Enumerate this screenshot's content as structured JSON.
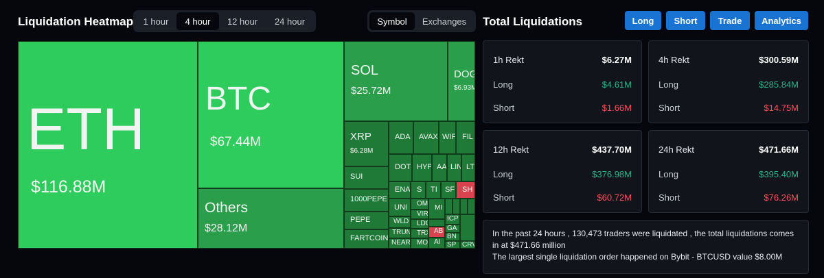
{
  "heatmap": {
    "title": "Liquidation Heatmap",
    "time_options": [
      "1 hour",
      "4 hour",
      "12 hour",
      "24 hour"
    ],
    "selected_time": "4 hour",
    "view_options": [
      "Symbol",
      "Exchanges"
    ],
    "selected_view": "Symbol",
    "tiles": {
      "eth": {
        "symbol": "ETH",
        "value": "$116.88M"
      },
      "btc": {
        "symbol": "BTC",
        "value": "$67.44M"
      },
      "others": {
        "symbol": "Others",
        "value": "$28.12M"
      },
      "sol": {
        "symbol": "SOL",
        "value": "$25.72M"
      },
      "doge": {
        "symbol": "DOG",
        "value": "$6.93M"
      },
      "xrp": {
        "symbol": "XRP",
        "value": "$6.28M"
      },
      "sui": {
        "symbol": "SUI"
      },
      "pepe1000": {
        "symbol": "1000PEPE"
      },
      "pepe": {
        "symbol": "PEPE"
      },
      "fartcoin": {
        "symbol": "FARTCOIN"
      },
      "ada": {
        "symbol": "ADA"
      },
      "avax": {
        "symbol": "AVAX"
      },
      "wif": {
        "symbol": "WIF"
      },
      "fil": {
        "symbol": "FIL"
      },
      "dot": {
        "symbol": "DOT"
      },
      "hyp": {
        "symbol": "HYP"
      },
      "aa": {
        "symbol": "AA"
      },
      "lin": {
        "symbol": "LIN"
      },
      "lt": {
        "symbol": "LT"
      },
      "ena": {
        "symbol": "ENA"
      },
      "s": {
        "symbol": "S"
      },
      "ti": {
        "symbol": "TI"
      },
      "sf": {
        "symbol": "SF"
      },
      "sh": {
        "symbol": "SH"
      },
      "uni": {
        "symbol": "UNI"
      },
      "wld": {
        "symbol": "WLD"
      },
      "trun": {
        "symbol": "TRUN"
      },
      "near": {
        "symbol": "NEAR"
      },
      "om": {
        "symbol": "OM"
      },
      "vir": {
        "symbol": "VIR"
      },
      "ldo": {
        "symbol": "LDO"
      },
      "trx": {
        "symbol": "TRX"
      },
      "mo": {
        "symbol": "MO"
      },
      "ab": {
        "symbol": "AB"
      },
      "mi": {
        "symbol": "MI"
      },
      "ai": {
        "symbol": "AI"
      },
      "icp": {
        "symbol": "ICP"
      },
      "ga": {
        "symbol": "GA"
      },
      "bn": {
        "symbol": "BN"
      },
      "sp": {
        "symbol": "SP"
      },
      "crv": {
        "symbol": "CRV"
      }
    }
  },
  "totals": {
    "title": "Total Liquidations",
    "buttons": [
      "Long",
      "Short",
      "Trade",
      "Analytics"
    ],
    "cards": [
      {
        "label": "1h Rekt",
        "total": "$6.27M",
        "long_label": "Long",
        "long": "$4.61M",
        "short_label": "Short",
        "short": "$1.66M"
      },
      {
        "label": "4h Rekt",
        "total": "$300.59M",
        "long_label": "Long",
        "long": "$285.84M",
        "short_label": "Short",
        "short": "$14.75M"
      },
      {
        "label": "12h Rekt",
        "total": "$437.70M",
        "long_label": "Long",
        "long": "$376.98M",
        "short_label": "Short",
        "short": "$60.72M"
      },
      {
        "label": "24h Rekt",
        "total": "$471.66M",
        "long_label": "Long",
        "long": "$395.40M",
        "short_label": "Short",
        "short": "$76.26M"
      }
    ],
    "summary_line1": "In the past 24 hours , 130,473 traders were liquidated , the total liquidations comes in at $471.66 million",
    "summary_line2": "The largest single liquidation order happened on Bybit - BTCUSD value $8.00M"
  },
  "colors": {
    "bright_green": "#2ecc5c",
    "mid_green": "#2a9e4a",
    "dark_green": "#1f7a38",
    "red": "#d9424f",
    "accent_blue": "#1873d3"
  }
}
